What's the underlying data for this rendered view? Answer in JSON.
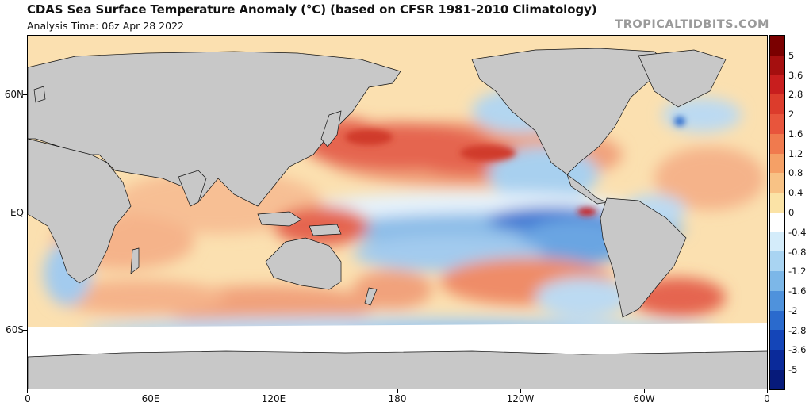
{
  "title": "CDAS Sea Surface Temperature Anomaly (°C) (based on CFSR 1981-2010 Climatology)",
  "subtitle": "Analysis Time: 06z Apr 28 2022",
  "brand": "TROPICALTIDBITS.COM",
  "map": {
    "lat_labels": [
      "60N",
      "EQ",
      "60S"
    ],
    "lon_labels": [
      "0",
      "60E",
      "120E",
      "180",
      "120W",
      "60W",
      "0"
    ]
  },
  "colorbar": {
    "labels": [
      "5",
      "3.6",
      "2.8",
      "2",
      "1.6",
      "1.2",
      "0.8",
      "0.4",
      "0",
      "-0.4",
      "-0.8",
      "-1.2",
      "-1.6",
      "-2",
      "-2.8",
      "-3.6",
      "-5"
    ],
    "colors": [
      "#7a0000",
      "#a50f0f",
      "#c81e1e",
      "#dc3c2c",
      "#e8553c",
      "#f07a4e",
      "#f5a066",
      "#f8c285",
      "#fbe3a6",
      "#ffffff",
      "#d4ecfa",
      "#a9d4f2",
      "#7cb7e8",
      "#4f92dc",
      "#2a6acd",
      "#1445b8",
      "#0a2a9a",
      "#061a7a"
    ]
  }
}
